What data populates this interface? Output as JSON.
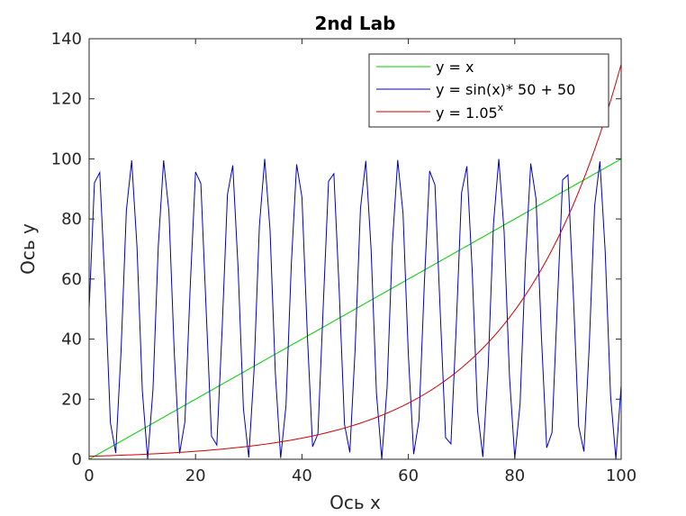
{
  "chart_data": {
    "type": "line",
    "title": "2nd Lab",
    "xlabel": "Ось x",
    "ylabel": "Ось y",
    "xlim": [
      0,
      100
    ],
    "ylim": [
      0,
      140
    ],
    "xticks": [
      "0",
      "20",
      "40",
      "60",
      "80",
      "100"
    ],
    "yticks": [
      "0",
      "20",
      "40",
      "60",
      "80",
      "100",
      "120",
      "140"
    ],
    "grid": false,
    "legend_position": "top-right",
    "legend": [
      {
        "label": "y = x",
        "color": "#00cc00"
      },
      {
        "label": "y = sin(x)* 50 + 50",
        "color": "#0000bb"
      },
      {
        "label": "y = 1.05",
        "superscript": "x",
        "color": "#cc0000"
      }
    ],
    "series": [
      {
        "name": "y = x",
        "color": "#00cc00",
        "x_range": [
          0,
          100
        ],
        "step": 1,
        "formula": "x"
      },
      {
        "name": "y = sin(x)* 50 + 50",
        "color": "#0000bb",
        "x_range": [
          0,
          100
        ],
        "step": 1,
        "formula": "sin(x)*50+50"
      },
      {
        "name": "y = 1.05^x",
        "color": "#cc0000",
        "x_range": [
          0,
          100
        ],
        "step": 1,
        "formula": "1.05^x"
      }
    ]
  }
}
